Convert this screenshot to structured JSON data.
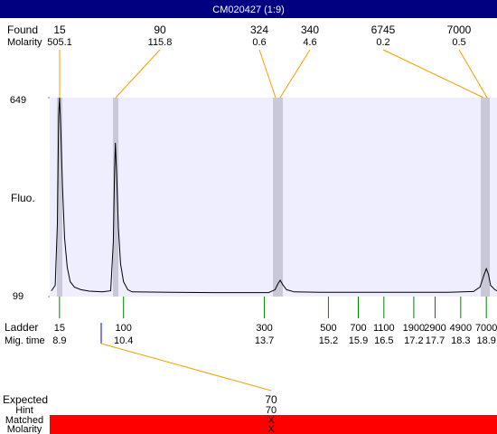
{
  "title": "CM020427 (1:9)",
  "found": {
    "label": "Found",
    "molarity_label": "Molarity",
    "sizes": [
      15,
      90,
      324,
      340,
      6745,
      7000
    ],
    "molarities": [
      505.1,
      115.8,
      0.6,
      4.6,
      0.2,
      0.5
    ]
  },
  "chart_data": {
    "type": "line",
    "y_label": "Fluo.",
    "x": [
      8.71,
      8.8,
      8.85,
      8.88,
      8.9,
      8.93,
      8.97,
      9.02,
      9.08,
      9.15,
      9.25,
      9.4,
      9.6,
      9.9,
      10.1,
      10.16,
      10.19,
      10.21,
      10.24,
      10.28,
      10.33,
      10.4,
      10.5,
      10.6,
      11.5,
      12.5,
      13.8,
      13.95,
      14.02,
      14.07,
      14.13,
      14.22,
      14.4,
      15,
      16,
      17,
      18,
      18.6,
      18.75,
      18.85,
      18.9,
      18.95,
      19.0,
      19.1,
      19.15
    ],
    "values": [
      115,
      130,
      300,
      600,
      649,
      560,
      400,
      260,
      180,
      140,
      125,
      118,
      114,
      112,
      115,
      250,
      450,
      524,
      430,
      290,
      190,
      140,
      118,
      112,
      111,
      110,
      110,
      118,
      135,
      144,
      132,
      118,
      112,
      111,
      111,
      111,
      111,
      113,
      125,
      160,
      176,
      160,
      130,
      118,
      115
    ],
    "color": "#000000",
    "xlim": [
      8.67,
      19.15
    ],
    "ylim": [
      99,
      649
    ],
    "yticks": [
      99,
      649
    ],
    "ladder_label": "Ladder",
    "time_label": "Mig. time",
    "ladder_sizes": [
      15,
      100,
      300,
      500,
      700,
      1100,
      1900,
      2900,
      4900,
      7000
    ],
    "ladder_times": [
      8.9,
      10.4,
      13.7,
      15.2,
      15.9,
      16.5,
      17.2,
      17.7,
      18.3,
      18.9
    ]
  },
  "expected": {
    "label": "Expected",
    "value": 70,
    "hint_label": "Hint",
    "hint": 70,
    "matched_label": "Matched",
    "matched": "X",
    "molarity_label": "Molarity",
    "molarity": "X"
  }
}
